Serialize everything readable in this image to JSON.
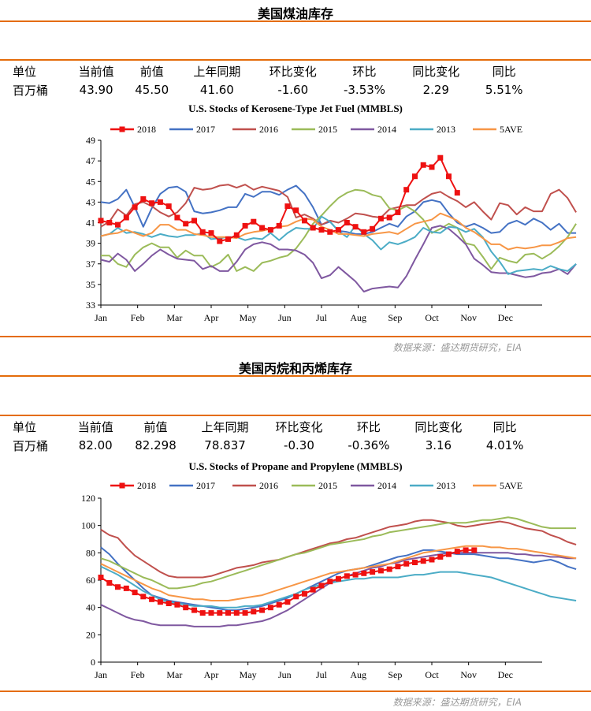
{
  "section1": {
    "title": "美国煤油库存",
    "stats_header": [
      "单位",
      "当前值",
      "前值",
      "上年同期",
      "环比变化",
      "环比",
      "同比变化",
      "同比"
    ],
    "stats_values": [
      "百万桶",
      "43.90",
      "45.50",
      "41.60",
      "-1.60",
      "-3.53%",
      "2.29",
      "5.51%"
    ],
    "source": "数据来源：盛达期货研究，EIA"
  },
  "section2": {
    "title": "美国丙烷和丙烯库存",
    "stats_header": [
      "单位",
      "当前值",
      "前值",
      "上年同期",
      "环比变化",
      "环比",
      "同比变化",
      "同比"
    ],
    "stats_values": [
      "百万桶",
      "82.00",
      "82.298",
      "78.837",
      "-0.30",
      "-0.36%",
      "3.16",
      "4.01%"
    ],
    "source": "数据来源：盛达期货研究，EIA"
  },
  "colors": {
    "rule": "#e46c0a",
    "y2018": "#ee1111",
    "y2017": "#4472c4",
    "y2016": "#c0504d",
    "y2015": "#9bbb59",
    "y2014": "#7f58a0",
    "y2013": "#4bacc6",
    "ave": "#f79646"
  },
  "chart_data": [
    {
      "type": "line",
      "title": "U.S.  Stocks of Kerosene-Type Jet Fuel (MMBLS)",
      "x_tick_labels": [
        "Jan",
        "Feb",
        "Mar",
        "Apr",
        "May",
        "Jun",
        "Jul",
        "Aug",
        "Sep",
        "Oct",
        "Nov",
        "Dec"
      ],
      "ylim": [
        33,
        49
      ],
      "y_ticks": [
        33,
        35,
        37,
        39,
        41,
        43,
        45,
        47,
        49
      ],
      "x_unit": "week of year",
      "legend": "top",
      "series": [
        {
          "name": "2018",
          "color": "#ee1111",
          "markers": true,
          "values": [
            41.2,
            41.0,
            40.8,
            41.5,
            42.5,
            43.3,
            42.9,
            43.0,
            42.6,
            41.5,
            40.9,
            41.2,
            40.1,
            40.0,
            39.2,
            39.4,
            39.8,
            40.7,
            41.1,
            40.5,
            40.3,
            40.7,
            42.6,
            42.2,
            41.2,
            40.5,
            40.3,
            40.1,
            40.3,
            41.0,
            40.6,
            40.1,
            40.4,
            41.4,
            41.5,
            42.0,
            44.2,
            45.5,
            46.6,
            46.4,
            47.3,
            45.5,
            43.9
          ]
        },
        {
          "name": "2017",
          "color": "#4472c4",
          "values": [
            43.0,
            42.9,
            43.3,
            44.2,
            42.5,
            40.6,
            42.4,
            43.8,
            44.4,
            44.5,
            44.0,
            42.1,
            41.9,
            42.0,
            42.2,
            42.5,
            42.5,
            43.8,
            43.5,
            44.0,
            44.0,
            43.7,
            44.2,
            44.6,
            43.8,
            42.5,
            40.8,
            41.1,
            40.2,
            40.1,
            39.9,
            39.9,
            40.1,
            40.5,
            40.9,
            40.6,
            41.6,
            42.1,
            43.0,
            43.2,
            43.0,
            41.9,
            41.0,
            40.6,
            40.9,
            40.5,
            40.0,
            40.1,
            40.9,
            41.2,
            40.8,
            41.4,
            41.0,
            40.3,
            40.9,
            40.0,
            40.0
          ]
        },
        {
          "name": "2016",
          "color": "#c0504d",
          "values": [
            40.6,
            41.1,
            42.3,
            41.7,
            42.8,
            43.0,
            42.6,
            42.0,
            41.6,
            42.0,
            42.9,
            44.4,
            44.2,
            44.3,
            44.6,
            44.7,
            44.4,
            44.7,
            44.2,
            44.5,
            44.3,
            44.1,
            43.5,
            41.5,
            41.8,
            41.4,
            40.8,
            41.2,
            41.0,
            41.4,
            41.9,
            41.8,
            41.6,
            41.5,
            42.3,
            42.5,
            42.7,
            42.7,
            43.3,
            43.8,
            44.0,
            43.5,
            43.1,
            42.5,
            43.0,
            42.1,
            41.3,
            42.9,
            42.7,
            41.8,
            42.5,
            42.1,
            42.1,
            43.8,
            44.2,
            43.4,
            42.0
          ]
        },
        {
          "name": "2015",
          "color": "#9bbb59",
          "values": [
            37.8,
            37.8,
            37.0,
            36.7,
            37.9,
            38.6,
            39.0,
            38.6,
            38.6,
            37.6,
            38.3,
            37.8,
            37.8,
            36.7,
            37.1,
            37.9,
            36.3,
            36.7,
            36.3,
            37.1,
            37.3,
            37.6,
            37.8,
            38.5,
            39.6,
            40.9,
            41.7,
            42.6,
            43.4,
            43.9,
            44.2,
            44.1,
            43.7,
            43.5,
            42.4,
            42.2,
            42.6,
            42.1,
            41.3,
            40.0,
            40.4,
            40.9,
            40.5,
            39.0,
            38.8,
            37.7,
            36.5,
            37.6,
            37.3,
            37.1,
            37.9,
            38.0,
            37.5,
            38.0,
            38.7,
            39.6,
            40.9
          ]
        },
        {
          "name": "2014",
          "color": "#7f58a0",
          "values": [
            37.4,
            37.2,
            38.0,
            37.4,
            36.3,
            37.0,
            37.8,
            38.4,
            37.9,
            37.5,
            37.4,
            37.3,
            36.5,
            36.8,
            36.3,
            36.3,
            37.2,
            38.4,
            38.9,
            39.1,
            38.9,
            38.4,
            38.4,
            38.3,
            37.9,
            37.1,
            35.6,
            35.9,
            36.7,
            36.0,
            35.3,
            34.3,
            34.6,
            34.7,
            34.8,
            34.7,
            35.8,
            37.4,
            38.9,
            40.5,
            40.7,
            40.4,
            39.7,
            38.9,
            37.5,
            36.9,
            36.2,
            36.1,
            36.1,
            35.9,
            35.7,
            35.8,
            36.1,
            36.2,
            36.5,
            36.0,
            37.0
          ]
        },
        {
          "name": "2013",
          "color": "#4bacc6",
          "values": [
            39.7,
            39.9,
            40.5,
            40.0,
            40.1,
            39.9,
            39.6,
            39.9,
            39.7,
            39.6,
            39.8,
            39.8,
            40.0,
            39.4,
            39.5,
            39.6,
            39.6,
            39.3,
            39.5,
            39.4,
            40.0,
            39.3,
            40.0,
            40.5,
            40.4,
            40.4,
            41.6,
            41.1,
            40.2,
            39.6,
            40.7,
            39.9,
            39.3,
            38.4,
            39.1,
            38.9,
            39.2,
            39.6,
            40.5,
            40.1,
            40.0,
            40.6,
            40.5,
            40.1,
            40.4,
            39.6,
            38.2,
            37.2,
            36.0,
            36.3,
            36.4,
            36.5,
            36.4,
            36.8,
            36.5,
            36.3,
            37.0
          ]
        },
        {
          "name": "5AVE",
          "color": "#f79646",
          "values": [
            39.7,
            39.9,
            40.0,
            40.3,
            40.0,
            39.7,
            40.0,
            40.8,
            40.8,
            40.3,
            40.3,
            39.9,
            39.8,
            39.6,
            39.6,
            39.6,
            39.5,
            39.9,
            40.1,
            40.2,
            40.4,
            40.6,
            40.7,
            41.1,
            41.4,
            41.3,
            40.6,
            40.3,
            39.9,
            39.9,
            39.8,
            39.7,
            39.9,
            40.0,
            40.1,
            39.9,
            40.4,
            40.9,
            41.1,
            41.3,
            41.9,
            41.6,
            41.2,
            40.5,
            40.1,
            39.5,
            38.9,
            38.9,
            38.4,
            38.6,
            38.5,
            38.6,
            38.8,
            38.8,
            39.1,
            39.5,
            39.6
          ]
        }
      ]
    },
    {
      "type": "line",
      "title": "U.S.  Stocks of Propane and Propylene (MMBLS)",
      "x_tick_labels": [
        "Jan",
        "Feb",
        "Mar",
        "Apr",
        "May",
        "Jun",
        "Jul",
        "Aug",
        "Sep",
        "Oct",
        "Nov",
        "Dec"
      ],
      "ylim": [
        0,
        120
      ],
      "y_ticks": [
        0,
        20,
        40,
        60,
        80,
        100,
        120
      ],
      "x_unit": "week of year",
      "legend": "top",
      "series": [
        {
          "name": "2018",
          "color": "#ee1111",
          "markers": true,
          "values": [
            62,
            58,
            55,
            54,
            51,
            48,
            46,
            44,
            43,
            42,
            40,
            38,
            36,
            36,
            36,
            36,
            36,
            36,
            37,
            38,
            40,
            42,
            44,
            48,
            50,
            53,
            56,
            59,
            61,
            63,
            64,
            65,
            66,
            67,
            68,
            70,
            72,
            73,
            74,
            75,
            77,
            79,
            81,
            82,
            82
          ]
        },
        {
          "name": "2017",
          "color": "#4472c4",
          "values": [
            84,
            79,
            72,
            66,
            60,
            54,
            49,
            47,
            45,
            44,
            43,
            42,
            41,
            40,
            39,
            38,
            38,
            39,
            40,
            41,
            43,
            45,
            47,
            50,
            53,
            56,
            59,
            62,
            65,
            67,
            68,
            69,
            71,
            73,
            75,
            77,
            78,
            80,
            82,
            82,
            81,
            80,
            79,
            79,
            79,
            78,
            77,
            76,
            76,
            75,
            74,
            73,
            74,
            75,
            73,
            70,
            68
          ]
        },
        {
          "name": "2016",
          "color": "#c0504d",
          "values": [
            97,
            93,
            91,
            84,
            78,
            74,
            70,
            66,
            63,
            62,
            62,
            62,
            62,
            63,
            65,
            67,
            69,
            70,
            71,
            73,
            74,
            75,
            77,
            79,
            81,
            83,
            85,
            87,
            88,
            90,
            91,
            93,
            95,
            97,
            99,
            100,
            101,
            103,
            104,
            104,
            103,
            102,
            100,
            99,
            100,
            101,
            102,
            103,
            102,
            100,
            98,
            97,
            96,
            93,
            91,
            88,
            86
          ]
        },
        {
          "name": "2015",
          "color": "#9bbb59",
          "values": [
            76,
            74,
            71,
            68,
            65,
            62,
            60,
            57,
            54,
            54,
            55,
            56,
            58,
            59,
            61,
            63,
            65,
            67,
            69,
            71,
            73,
            75,
            77,
            79,
            80,
            82,
            84,
            86,
            87,
            88,
            89,
            90,
            92,
            93,
            95,
            96,
            97,
            98,
            99,
            100,
            101,
            102,
            102,
            102,
            103,
            104,
            104,
            105,
            106,
            105,
            103,
            101,
            99,
            98,
            98,
            98,
            98
          ]
        },
        {
          "name": "2014",
          "color": "#7f58a0",
          "values": [
            42,
            39,
            36,
            33,
            31,
            30,
            28,
            27,
            27,
            27,
            27,
            26,
            26,
            26,
            26,
            27,
            27,
            28,
            29,
            30,
            32,
            35,
            38,
            42,
            46,
            50,
            54,
            58,
            61,
            63,
            65,
            67,
            69,
            70,
            72,
            73,
            75,
            76,
            77,
            78,
            79,
            80,
            80,
            80,
            80,
            80,
            80,
            80,
            80,
            79,
            79,
            78,
            78,
            77,
            77,
            76,
            76
          ]
        },
        {
          "name": "2013",
          "color": "#4bacc6",
          "values": [
            70,
            67,
            64,
            60,
            56,
            52,
            49,
            46,
            44,
            43,
            42,
            41,
            41,
            41,
            40,
            40,
            40,
            41,
            41,
            42,
            44,
            46,
            48,
            50,
            53,
            55,
            57,
            58,
            59,
            60,
            61,
            61,
            62,
            62,
            62,
            62,
            63,
            64,
            64,
            65,
            66,
            66,
            66,
            65,
            64,
            63,
            62,
            60,
            58,
            56,
            54,
            52,
            50,
            48,
            47,
            46,
            45
          ]
        },
        {
          "name": "5AVE",
          "color": "#f79646",
          "values": [
            72,
            69,
            66,
            63,
            60,
            57,
            54,
            52,
            49,
            48,
            47,
            46,
            46,
            45,
            45,
            45,
            46,
            47,
            48,
            49,
            51,
            53,
            55,
            57,
            59,
            61,
            63,
            65,
            66,
            67,
            68,
            69,
            70,
            71,
            72,
            74,
            76,
            78,
            80,
            81,
            82,
            83,
            84,
            85,
            85,
            85,
            84,
            84,
            83,
            83,
            82,
            81,
            80,
            79,
            78,
            77,
            76
          ]
        }
      ]
    }
  ]
}
